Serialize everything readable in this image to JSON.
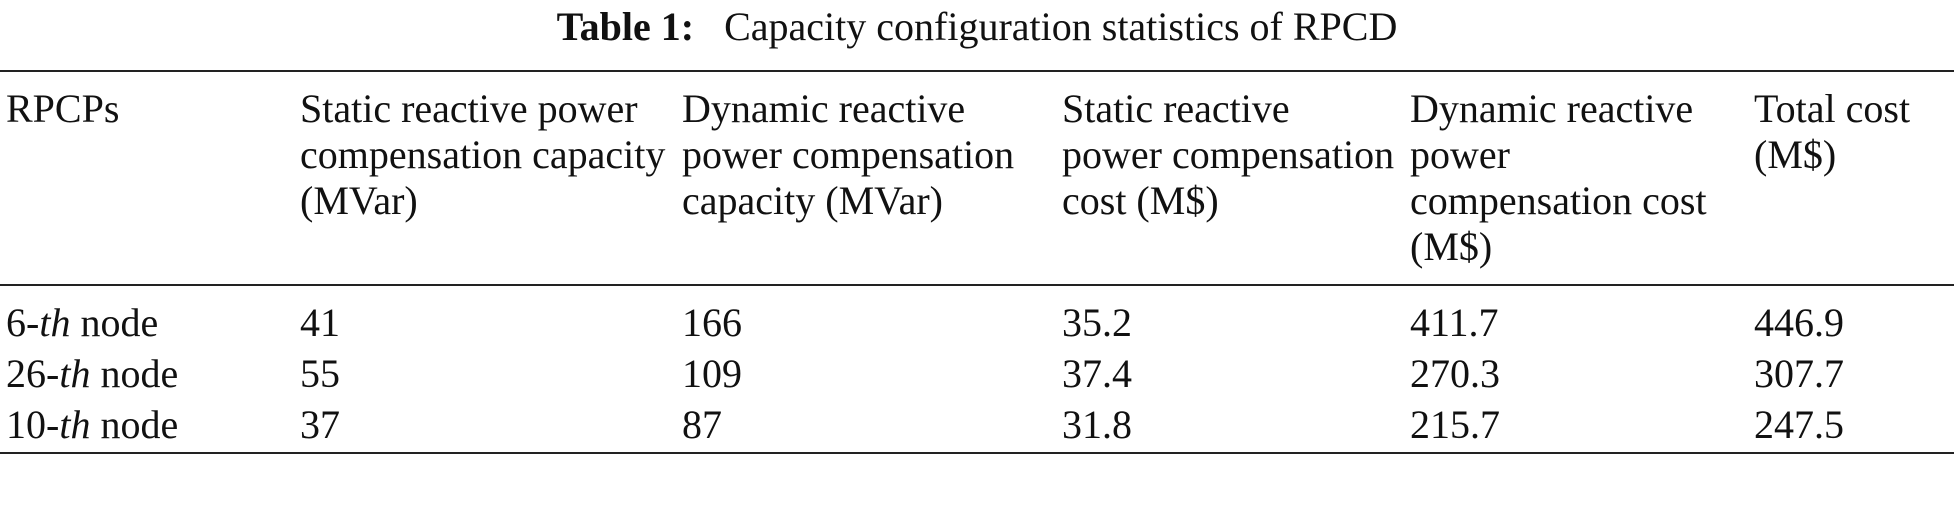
{
  "caption": {
    "label": "Table 1:",
    "text": "Capacity configuration statistics of RPCD"
  },
  "table": {
    "headers": [
      "RPCPs",
      "Static reactive power compensation capacity (MVar)",
      "Dynamic reactive power compensation capacity (MVar)",
      "Static reactive power compensation cost (M$)",
      "Dynamic reactive power compensation cost (M$)",
      "Total cost (M$)"
    ],
    "rows": [
      {
        "node_num": "6-",
        "node_ord": "th",
        "node_word": " node",
        "cells": [
          "41",
          "166",
          "35.2",
          "411.7",
          "446.9"
        ]
      },
      {
        "node_num": "26-",
        "node_ord": "th",
        "node_word": " node",
        "cells": [
          "55",
          "109",
          "37.4",
          "270.3",
          "307.7"
        ]
      },
      {
        "node_num": "10-",
        "node_ord": "th",
        "node_word": " node",
        "cells": [
          "37",
          "87",
          "31.8",
          "215.7",
          "247.5"
        ]
      }
    ]
  }
}
